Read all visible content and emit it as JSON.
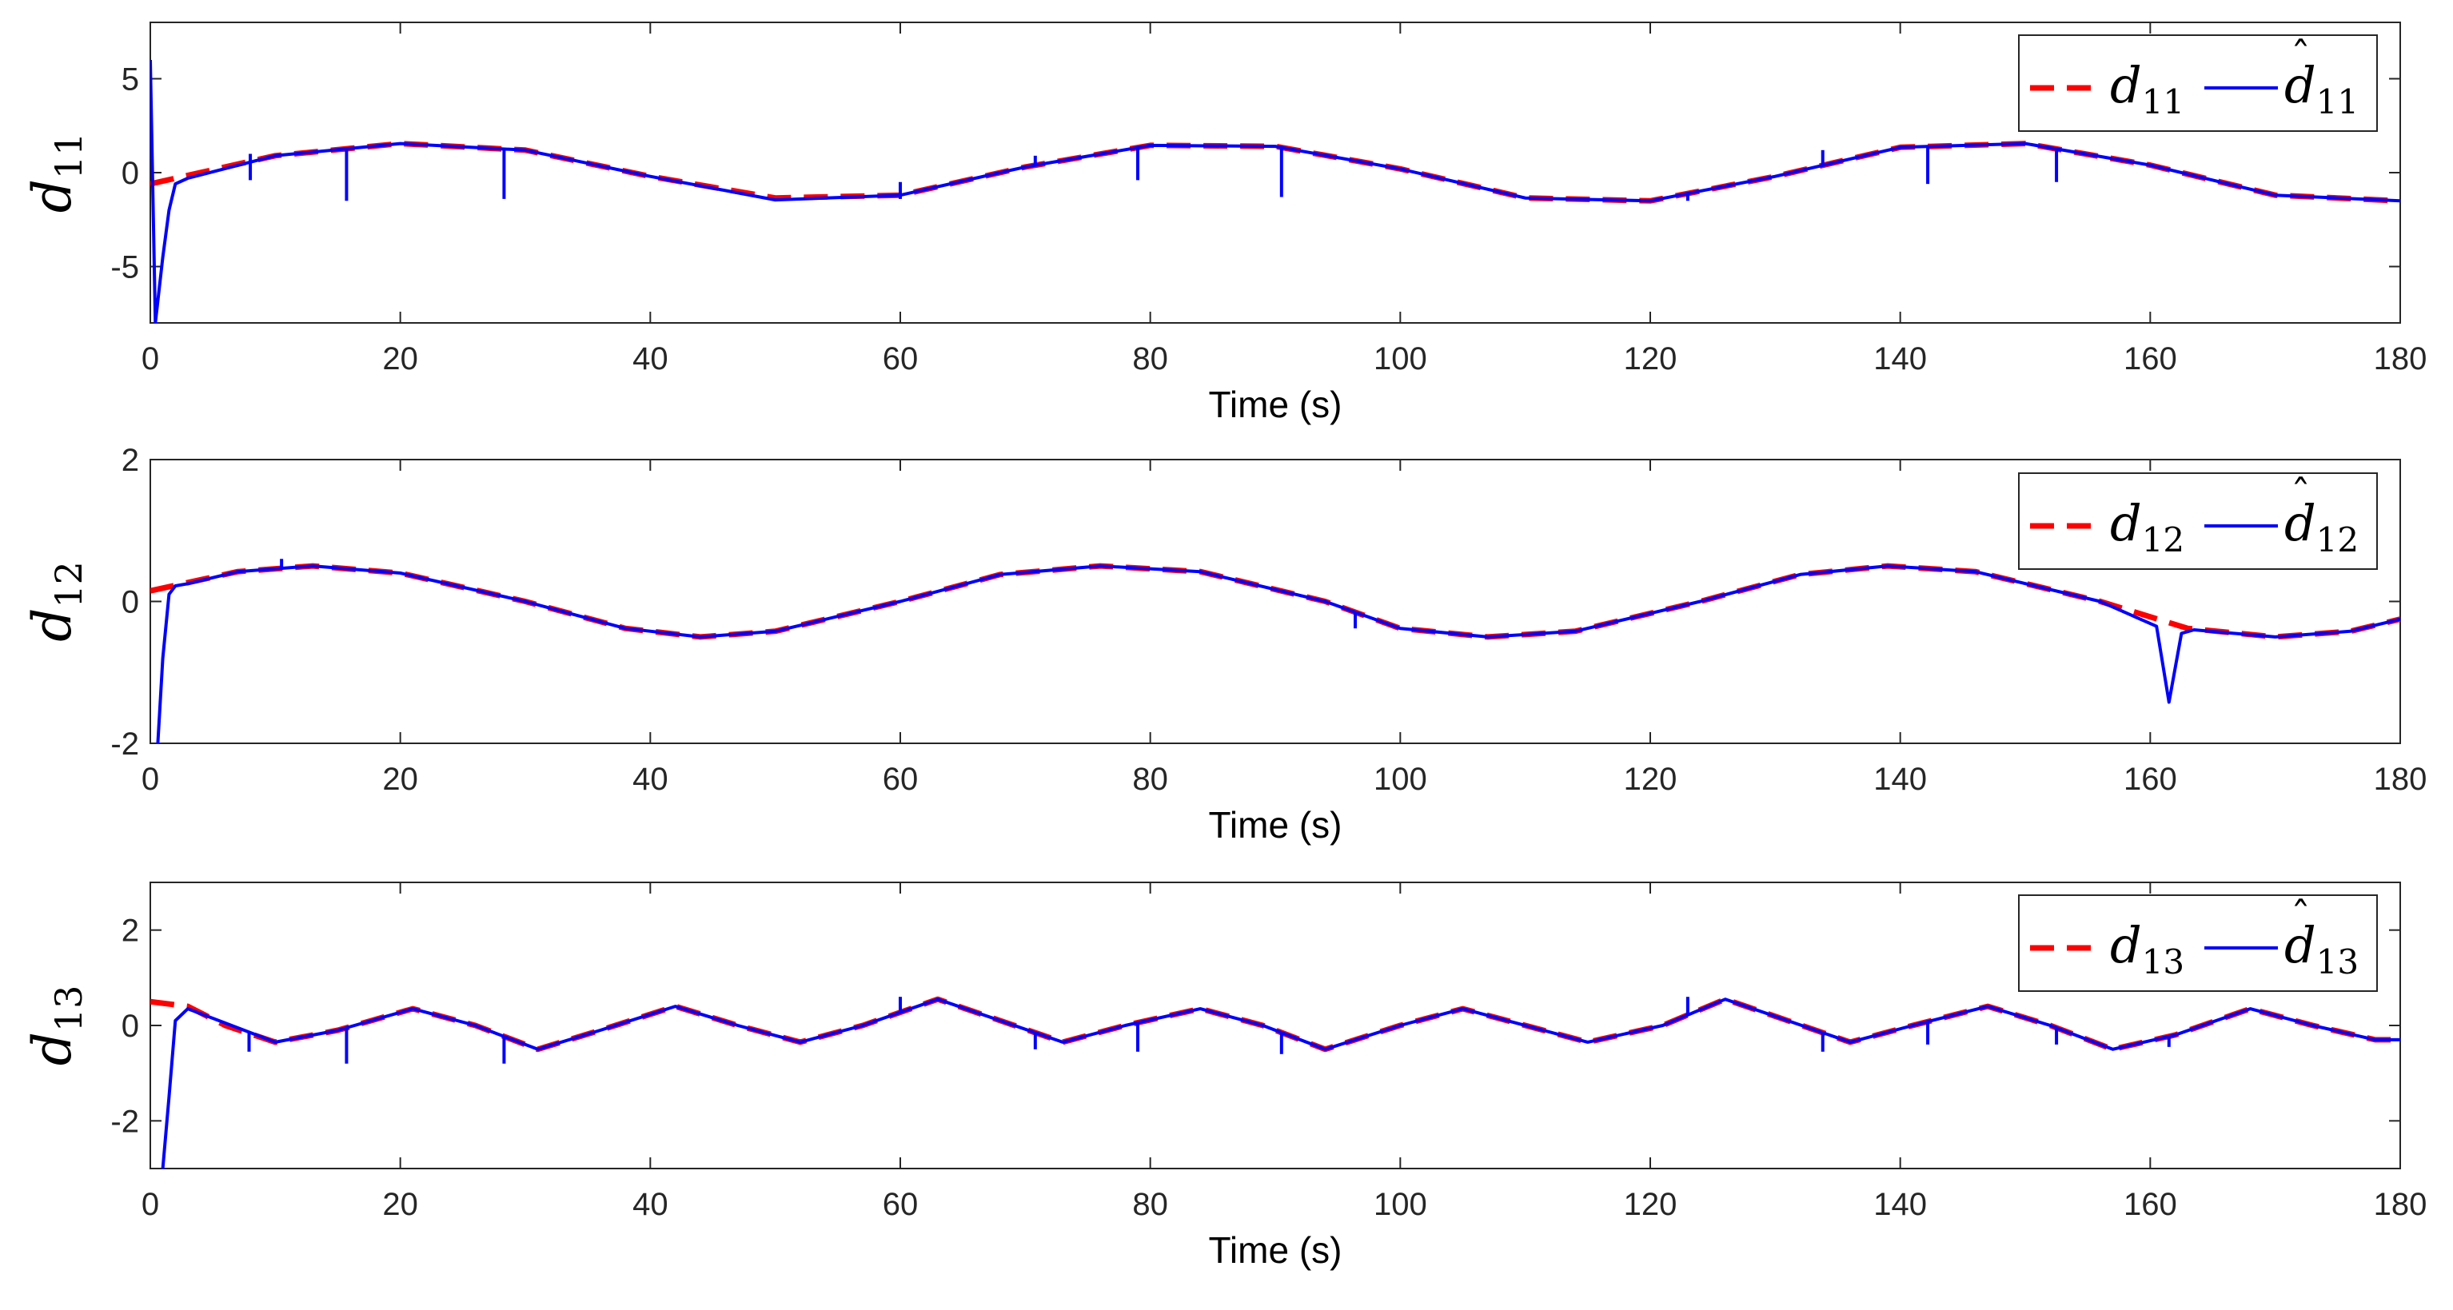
{
  "chart_data": [
    {
      "type": "line",
      "panel": "d11",
      "ylabel": {
        "main": "d",
        "sub": "11"
      },
      "xlabel": "Time (s)",
      "xlim": [
        0,
        180
      ],
      "ylim": [
        -8,
        8
      ],
      "xticks": [
        0,
        20,
        40,
        60,
        80,
        100,
        120,
        140,
        160,
        180
      ],
      "yticks": [
        5,
        0,
        -5
      ],
      "legend": [
        {
          "name": "d",
          "sub": "11",
          "hat": false,
          "style": "dashed",
          "color": "#ff0000"
        },
        {
          "name": "d",
          "sub": "11",
          "hat": true,
          "style": "solid",
          "color": "#0000ff"
        }
      ],
      "series": [
        {
          "name": "d11",
          "style": "dashed",
          "color": "#ff0000",
          "x": [
            0,
            10,
            20,
            30,
            40,
            50,
            60,
            70,
            80,
            90,
            100,
            110,
            120,
            130,
            140,
            150,
            160,
            170,
            180
          ],
          "y": [
            -0.6,
            0.9,
            1.55,
            1.2,
            -0.2,
            -1.35,
            -1.2,
            0.3,
            1.45,
            1.4,
            0.2,
            -1.35,
            -1.5,
            -0.2,
            1.35,
            1.55,
            0.4,
            -1.2,
            -1.5
          ]
        },
        {
          "name": "d11_hat",
          "style": "solid",
          "color": "#0000ff",
          "x": [
            0,
            0.4,
            1,
            1.5,
            2,
            3,
            10,
            20,
            30,
            40,
            50,
            60,
            70,
            80,
            90,
            100,
            110,
            120,
            130,
            140,
            150,
            160,
            170,
            180
          ],
          "y": [
            6,
            -8,
            -4.5,
            -2,
            -0.6,
            -0.3,
            0.9,
            1.55,
            1.2,
            -0.2,
            -1.45,
            -1.2,
            0.3,
            1.45,
            1.4,
            0.2,
            -1.35,
            -1.5,
            -0.2,
            1.35,
            1.55,
            0.4,
            -1.2,
            -1.5
          ],
          "spikes": [
            [
              8,
              -0.4
            ],
            [
              8,
              1.0
            ],
            [
              15.7,
              -1.5
            ],
            [
              28.3,
              -1.4
            ],
            [
              60,
              -1.4
            ],
            [
              60,
              -0.5
            ],
            [
              70.8,
              0.9
            ],
            [
              79,
              -0.4
            ],
            [
              90.5,
              -1.3
            ],
            [
              123,
              -1.5
            ],
            [
              133.8,
              1.2
            ],
            [
              142.2,
              -0.6
            ],
            [
              152.5,
              -0.5
            ]
          ]
        }
      ]
    },
    {
      "type": "line",
      "panel": "d12",
      "ylabel": {
        "main": "d",
        "sub": "12"
      },
      "xlabel": "Time (s)",
      "xlim": [
        0,
        180
      ],
      "ylim": [
        -2,
        2
      ],
      "xticks": [
        0,
        20,
        40,
        60,
        80,
        100,
        120,
        140,
        160,
        180
      ],
      "yticks": [
        2,
        0,
        -2
      ],
      "legend": [
        {
          "name": "d",
          "sub": "12",
          "hat": false,
          "style": "dashed",
          "color": "#ff0000"
        },
        {
          "name": "d",
          "sub": "12",
          "hat": true,
          "style": "solid",
          "color": "#0000ff"
        }
      ],
      "series": [
        {
          "name": "d12",
          "style": "dashed",
          "color": "#ff0000",
          "x": [
            0,
            7,
            13,
            20,
            30,
            38,
            44,
            50,
            60,
            68,
            76,
            84,
            94,
            100,
            107,
            114,
            124,
            132,
            139,
            146,
            156,
            163,
            170,
            176,
            180
          ],
          "y": [
            0.15,
            0.42,
            0.5,
            0.4,
            0.0,
            -0.38,
            -0.5,
            -0.42,
            0.0,
            0.38,
            0.5,
            0.42,
            0.0,
            -0.38,
            -0.5,
            -0.42,
            0.0,
            0.38,
            0.5,
            0.42,
            0.0,
            -0.38,
            -0.5,
            -0.42,
            -0.25
          ]
        },
        {
          "name": "d12_hat",
          "style": "solid",
          "color": "#0000ff",
          "x": [
            0.6,
            1,
            1.5,
            2,
            3,
            7,
            13,
            20,
            30,
            38,
            44,
            50,
            60,
            68,
            76,
            84,
            94,
            100,
            107,
            114,
            124,
            132,
            139,
            146,
            156,
            160.5,
            161.5,
            162.5,
            163.5,
            170,
            176,
            180
          ],
          "y": [
            -2,
            -0.8,
            0.1,
            0.22,
            0.25,
            0.42,
            0.5,
            0.4,
            0.0,
            -0.38,
            -0.5,
            -0.42,
            0.0,
            0.38,
            0.5,
            0.42,
            0.0,
            -0.38,
            -0.5,
            -0.42,
            0.0,
            0.38,
            0.5,
            0.42,
            0.0,
            -0.35,
            -1.42,
            -0.45,
            -0.4,
            -0.5,
            -0.42,
            -0.25
          ],
          "spikes": [
            [
              10.5,
              0.6
            ],
            [
              96.4,
              -0.38
            ]
          ]
        }
      ]
    },
    {
      "type": "line",
      "panel": "d13",
      "ylabel": {
        "main": "d",
        "sub": "13"
      },
      "xlabel": "Time (s)",
      "xlim": [
        0,
        180
      ],
      "ylim": [
        -3,
        3
      ],
      "xticks": [
        0,
        20,
        40,
        60,
        80,
        100,
        120,
        140,
        160,
        180
      ],
      "yticks": [
        2,
        0,
        -2
      ],
      "legend": [
        {
          "name": "d",
          "sub": "13",
          "hat": false,
          "style": "dashed",
          "color": "#ff0000"
        },
        {
          "name": "d",
          "sub": "13",
          "hat": true,
          "style": "solid",
          "color": "#0000ff"
        }
      ],
      "series": [
        {
          "name": "d13",
          "style": "dashed",
          "color": "#ff0000",
          "x": [
            0,
            3,
            6,
            10,
            15,
            21,
            26,
            31,
            36,
            42,
            47,
            52,
            57,
            63,
            68,
            73,
            78,
            84,
            89,
            94,
            100,
            105,
            110,
            115,
            121,
            126,
            131,
            136,
            141,
            147,
            152,
            157,
            162,
            168,
            173,
            178,
            180
          ],
          "y": [
            0.5,
            0.4,
            0.0,
            -0.35,
            -0.1,
            0.35,
            0.0,
            -0.5,
            -0.1,
            0.4,
            0.0,
            -0.35,
            0.0,
            0.55,
            0.1,
            -0.35,
            0.0,
            0.35,
            0.0,
            -0.5,
            0.0,
            0.35,
            0.0,
            -0.35,
            0.0,
            0.55,
            0.1,
            -0.35,
            0.0,
            0.4,
            0.0,
            -0.5,
            -0.2,
            0.35,
            0.0,
            -0.3,
            -0.3
          ]
        },
        {
          "name": "d13_hat",
          "style": "solid",
          "color": "#0000ff",
          "x": [
            1,
            1.5,
            2,
            3,
            6,
            10,
            15,
            21,
            26,
            31,
            36,
            42,
            47,
            52,
            57,
            63,
            68,
            73,
            78,
            84,
            89,
            94,
            100,
            105,
            110,
            115,
            121,
            126,
            131,
            136,
            141,
            147,
            152,
            157,
            162,
            168,
            173,
            178,
            180
          ],
          "y": [
            -3,
            -1.5,
            0.1,
            0.35,
            0.05,
            -0.35,
            -0.1,
            0.35,
            0.0,
            -0.5,
            -0.1,
            0.4,
            0.0,
            -0.35,
            0.0,
            0.55,
            0.1,
            -0.35,
            0.0,
            0.35,
            0.0,
            -0.5,
            0.0,
            0.35,
            0.0,
            -0.35,
            0.0,
            0.55,
            0.1,
            -0.35,
            0.0,
            0.4,
            0.0,
            -0.5,
            -0.2,
            0.35,
            0.0,
            -0.3,
            -0.3
          ],
          "spikes": [
            [
              7.9,
              -0.55
            ],
            [
              15.7,
              -0.8
            ],
            [
              28.3,
              -0.8
            ],
            [
              60,
              0.6
            ],
            [
              70.8,
              -0.5
            ],
            [
              79,
              -0.55
            ],
            [
              90.5,
              -0.6
            ],
            [
              123,
              0.6
            ],
            [
              133.8,
              -0.55
            ],
            [
              142.2,
              -0.4
            ],
            [
              152.5,
              -0.4
            ],
            [
              161.5,
              -0.45
            ]
          ]
        }
      ]
    }
  ]
}
